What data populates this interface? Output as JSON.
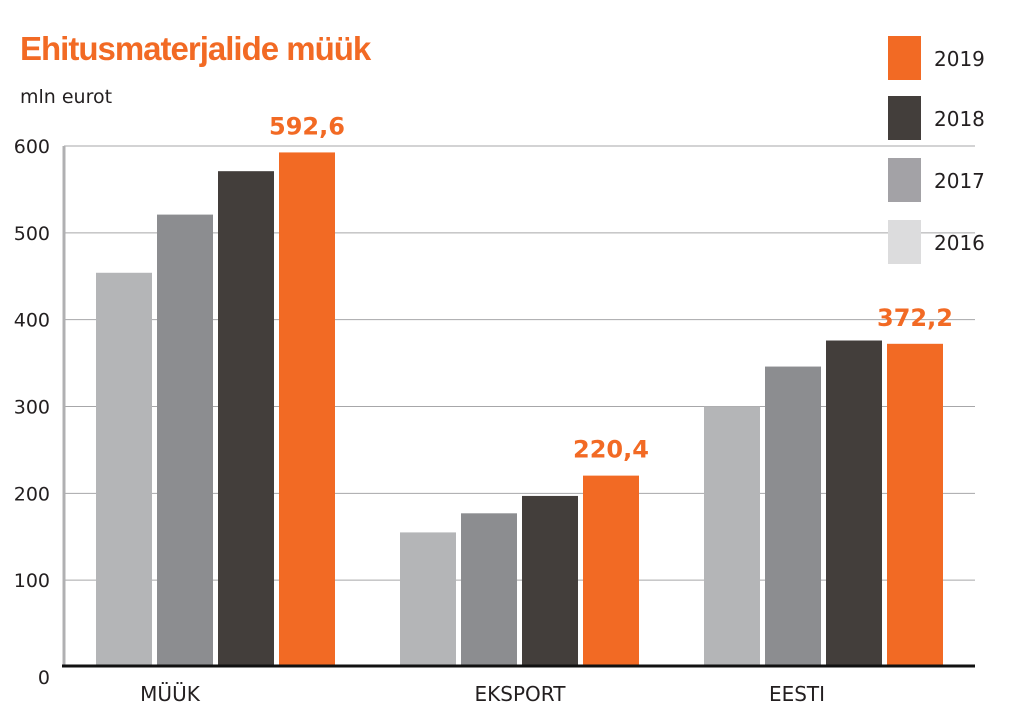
{
  "chart_data": {
    "type": "bar",
    "title": "Ehitusmaterjalide müük",
    "ylabel": "mln eurot",
    "xlabel": "",
    "ylim": [
      0,
      600
    ],
    "yticks": [
      "0",
      "100",
      "200",
      "300",
      "400",
      "500",
      "600"
    ],
    "grid": true,
    "legend_placement": "top-right",
    "categories": [
      "MÜÜK",
      "EKSPORT",
      "EESTI"
    ],
    "series": [
      {
        "name": "2016",
        "color": "#b4b5b7",
        "legend_color": "#dcdcdd",
        "values": [
          454,
          155,
          300
        ]
      },
      {
        "name": "2017",
        "color": "#8c8d90",
        "legend_color": "#a3a2a6",
        "values": [
          521,
          177,
          346
        ]
      },
      {
        "name": "2018",
        "color": "#433e3b",
        "legend_color": "#433e3b",
        "values": [
          571,
          197,
          376
        ]
      },
      {
        "name": "2019",
        "color": "#f26a24",
        "legend_color": "#f26a24",
        "values": [
          592.6,
          220.4,
          372.2
        ]
      }
    ],
    "data_labels": [
      "592,6",
      "220,4",
      "372,2"
    ]
  }
}
